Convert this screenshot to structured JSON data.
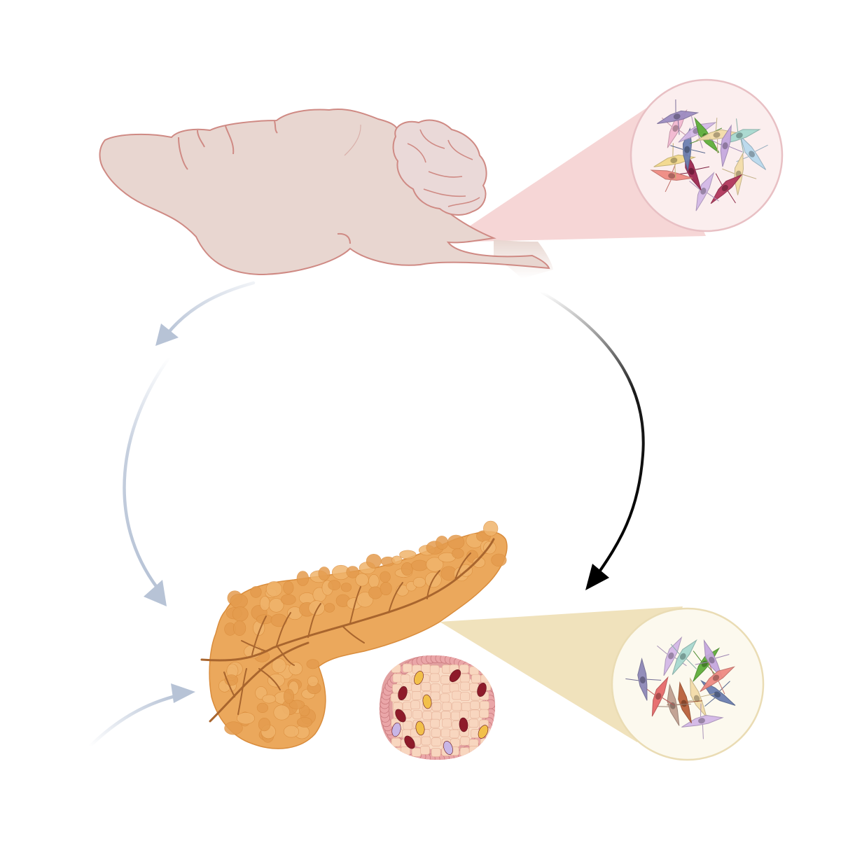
{
  "figure": {
    "description_visible_text": [],
    "colors": {
      "brain_fill": "#e8d6d0",
      "brain_stroke": "#cf8a84",
      "cerebellum_fill": "#ead9d8",
      "brain_zoom_fill": "#fbeeee",
      "brain_zoom_stroke": "#e8c0c4",
      "brain_cone": "#f6d4d4",
      "pancreas_fill": "#eba85c",
      "pancreas_stroke": "#d98c3c",
      "duct": "#a8652e",
      "islet_fill": "#f7d9c4",
      "islet_border": "#e2a0a0",
      "pancreas_zoom_fill": "#fcf9ee",
      "pancreas_zoom_stroke": "#eadcb4",
      "pancreas_cone": "#efe0b8",
      "arrow_gray_blue": "#b7c3d6",
      "arrow_black": "#000000"
    },
    "brain_neurons": [
      "#b9d8ec",
      "#f3dca8",
      "#b0365b",
      "#d3b8e6",
      "#9c2750",
      "#ef8b82",
      "#f3d98c",
      "#6c7fb0",
      "#f2b8d0",
      "#9c8cc0",
      "#d3b8e6",
      "#5fae3a",
      "#f3dca8",
      "#a8d8cf",
      "#c6a8de"
    ],
    "pancreas_neurons": [
      "#6c7fb0",
      "#f3dca8",
      "#d3b8e6",
      "#b9603a",
      "#c0a090",
      "#e66a6a",
      "#8e88b8",
      "#d3b8e6",
      "#a8d8cf",
      "#5fae3a",
      "#c6a8de",
      "#ef8b82"
    ]
  }
}
